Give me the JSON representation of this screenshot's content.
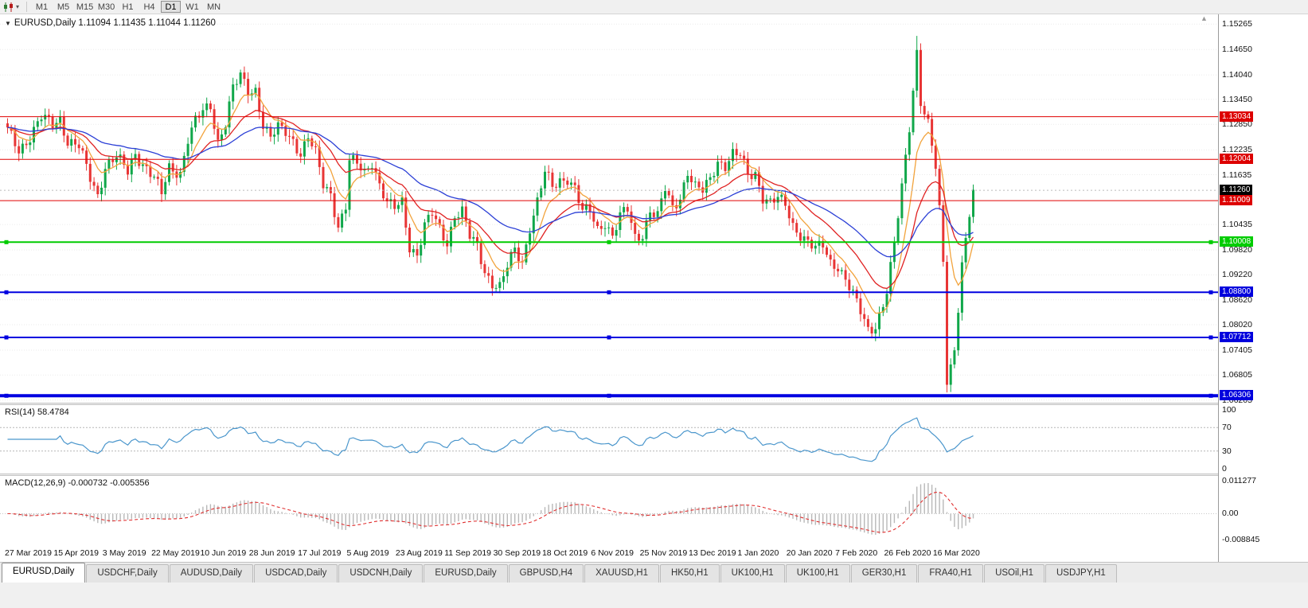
{
  "icons": {
    "dropdown_arrow": "▾",
    "header_arrow": "▼",
    "scroll_arrow": "▲"
  },
  "toolbar": {
    "timeframes": [
      "M1",
      "M5",
      "M15",
      "M30",
      "H1",
      "H4",
      "D1",
      "W1",
      "MN"
    ],
    "active_timeframe": "D1"
  },
  "chart": {
    "symbol": "EURUSD,Daily",
    "ohlc_text": "EURUSD,Daily 1.11094 1.11435 1.11044 1.11260",
    "open": "1.11094",
    "high": "1.11435",
    "low": "1.11044",
    "close": "1.11260"
  },
  "price_axis": {
    "range": {
      "max": 1.155,
      "min": 1.0614
    },
    "plain_labels": [
      "1.15265",
      "1.14650",
      "1.14040",
      "1.13450",
      "1.12850",
      "1.12235",
      "1.11635",
      "1.10435",
      "1.09820",
      "1.09220",
      "1.08620",
      "1.08020",
      "1.07405",
      "1.06805",
      "1.06205"
    ],
    "boxed_labels": [
      {
        "text": "1.13034",
        "bg": "#dd0000",
        "fg": "#ffffff"
      },
      {
        "text": "1.12004",
        "bg": "#dd0000",
        "fg": "#ffffff"
      },
      {
        "text": "1.11260",
        "bg": "#000000",
        "fg": "#ffffff"
      },
      {
        "text": "1.11009",
        "bg": "#dd0000",
        "fg": "#ffffff"
      },
      {
        "text": "1.10008",
        "bg": "#00cc00",
        "fg": "#ffffff"
      },
      {
        "text": "1.08800",
        "bg": "#0000dd",
        "fg": "#ffffff"
      },
      {
        "text": "1.07712",
        "bg": "#0000dd",
        "fg": "#ffffff"
      },
      {
        "text": "1.06306",
        "bg": "#0000dd",
        "fg": "#ffffff"
      }
    ]
  },
  "hlines": [
    {
      "price": 1.13034,
      "color": "#e00000",
      "width": 1,
      "style": "solid",
      "handles": false
    },
    {
      "price": 1.12004,
      "color": "#e00000",
      "width": 1,
      "style": "solid",
      "handles": false
    },
    {
      "price": 1.1126,
      "color": "#bbbbbb",
      "width": 1,
      "style": "dotted",
      "handles": false
    },
    {
      "price": 1.11009,
      "color": "#e00000",
      "width": 1,
      "style": "solid",
      "handles": false
    },
    {
      "price": 1.10008,
      "color": "#00cc00",
      "width": 2,
      "style": "solid",
      "handles": true
    },
    {
      "price": 1.088,
      "color": "#0000e0",
      "width": 2,
      "style": "solid",
      "handles": true
    },
    {
      "price": 1.07712,
      "color": "#0000e0",
      "width": 2,
      "style": "solid",
      "handles": true
    },
    {
      "price": 1.06306,
      "color": "#0000e0",
      "width": 4,
      "style": "solid",
      "handles": true
    }
  ],
  "rsi": {
    "label": "RSI(14) 58.4784",
    "value": 58.4784,
    "period": 14,
    "levels": [
      100,
      70,
      30,
      0
    ],
    "line_color": "#4a96cc"
  },
  "macd": {
    "label": "MACD(12,26,9) -0.000732 -0.005356",
    "fast": 12,
    "slow": 26,
    "signal": 9,
    "values": [
      -0.000732,
      -0.005356
    ],
    "scale_max": 0.011277,
    "scale_min": -0.008845,
    "axis_labels": [
      "0.011277",
      "0.00",
      "-0.008845"
    ],
    "hist_color": "#b8b8b8",
    "signal_color": "#e03030"
  },
  "dates": [
    "27 Mar 2019",
    "15 Apr 2019",
    "3 May 2019",
    "22 May 2019",
    "10 Jun 2019",
    "28 Jun 2019",
    "17 Jul 2019",
    "5 Aug 2019",
    "23 Aug 2019",
    "11 Sep 2019",
    "30 Sep 2019",
    "18 Oct 2019",
    "6 Nov 2019",
    "25 Nov 2019",
    "13 Dec 2019",
    "1 Jan 2020",
    "20 Jan 2020",
    "7 Feb 2020",
    "26 Feb 2020",
    "16 Mar 2020"
  ],
  "tabs": {
    "active_index": 0,
    "items": [
      "EURUSD,Daily",
      "USDCHF,Daily",
      "AUDUSD,Daily",
      "USDCAD,Daily",
      "USDCNH,Daily",
      "EURUSD,Daily",
      "GBPUSD,H4",
      "XAUUSD,H1",
      "HK50,H1",
      "UK100,H1",
      "UK100,H1",
      "GER30,H1",
      "FRA40,H1",
      "USOil,H1",
      "USDJPY,H1"
    ]
  },
  "colors": {
    "up": "#10a74a",
    "down": "#e83535",
    "ma_fast": "#f2a33c",
    "ma_mid": "#e02222",
    "ma_slow": "#2b3fd6",
    "grid": "#ebebeb"
  },
  "chart_data": {
    "type": "candlestick",
    "symbol": "EURUSD",
    "timeframe": "Daily",
    "x_range": [
      "27 Mar 2019",
      "31 Mar 2020"
    ],
    "candle_count": 258,
    "candles_per_date_label": 13,
    "close_anchors": [
      [
        0,
        1.127
      ],
      [
        3,
        1.1225
      ],
      [
        6,
        1.1255
      ],
      [
        9,
        1.13
      ],
      [
        12,
        1.1285
      ],
      [
        14,
        1.13
      ],
      [
        16,
        1.1245
      ],
      [
        19,
        1.123
      ],
      [
        22,
        1.1155
      ],
      [
        24,
        1.1115
      ],
      [
        26,
        1.1185
      ],
      [
        29,
        1.1205
      ],
      [
        32,
        1.117
      ],
      [
        34,
        1.1215
      ],
      [
        37,
        1.118
      ],
      [
        39,
        1.1155
      ],
      [
        41,
        1.1115
      ],
      [
        43,
        1.118
      ],
      [
        46,
        1.117
      ],
      [
        48,
        1.125
      ],
      [
        50,
        1.129
      ],
      [
        52,
        1.1315
      ],
      [
        54,
        1.133
      ],
      [
        56,
        1.1245
      ],
      [
        58,
        1.129
      ],
      [
        60,
        1.137
      ],
      [
        62,
        1.14
      ],
      [
        64,
        1.1365
      ],
      [
        66,
        1.137
      ],
      [
        68,
        1.1285
      ],
      [
        70,
        1.125
      ],
      [
        72,
        1.1275
      ],
      [
        74,
        1.1268
      ],
      [
        76,
        1.1248
      ],
      [
        78,
        1.1215
      ],
      [
        80,
        1.1252
      ],
      [
        82,
        1.1212
      ],
      [
        84,
        1.114
      ],
      [
        86,
        1.112
      ],
      [
        88,
        1.104
      ],
      [
        90,
        1.1085
      ],
      [
        91,
        1.1195
      ],
      [
        93,
        1.1188
      ],
      [
        95,
        1.117
      ],
      [
        97,
        1.1198
      ],
      [
        99,
        1.114
      ],
      [
        101,
        1.1092
      ],
      [
        103,
        1.1082
      ],
      [
        105,
        1.1098
      ],
      [
        107,
        1.0992
      ],
      [
        109,
        1.0972
      ],
      [
        111,
        1.1038
      ],
      [
        113,
        1.1068
      ],
      [
        115,
        1.1032
      ],
      [
        117,
        1.1002
      ],
      [
        119,
        1.1068
      ],
      [
        121,
        1.1074
      ],
      [
        123,
        1.1012
      ],
      [
        125,
        1.099
      ],
      [
        127,
        1.0932
      ],
      [
        129,
        1.0904
      ],
      [
        131,
        1.0892
      ],
      [
        133,
        1.094
      ],
      [
        135,
        1.0982
      ],
      [
        137,
        1.0952
      ],
      [
        139,
        1.104
      ],
      [
        141,
        1.1098
      ],
      [
        143,
        1.1168
      ],
      [
        145,
        1.1132
      ],
      [
        147,
        1.115
      ],
      [
        149,
        1.1158
      ],
      [
        151,
        1.1132
      ],
      [
        153,
        1.1072
      ],
      [
        155,
        1.1076
      ],
      [
        157,
        1.1032
      ],
      [
        159,
        1.1052
      ],
      [
        161,
        1.1016
      ],
      [
        163,
        1.1062
      ],
      [
        165,
        1.1078
      ],
      [
        167,
        1.1012
      ],
      [
        169,
        1.1022
      ],
      [
        171,
        1.1078
      ],
      [
        173,
        1.1062
      ],
      [
        175,
        1.1128
      ],
      [
        177,
        1.1082
      ],
      [
        179,
        1.1112
      ],
      [
        181,
        1.1172
      ],
      [
        183,
        1.1132
      ],
      [
        185,
        1.1122
      ],
      [
        187,
        1.1152
      ],
      [
        189,
        1.1198
      ],
      [
        191,
        1.1188
      ],
      [
        193,
        1.1212
      ],
      [
        195,
        1.1208
      ],
      [
        197,
        1.1162
      ],
      [
        199,
        1.1168
      ],
      [
        201,
        1.1112
      ],
      [
        203,
        1.1096
      ],
      [
        205,
        1.1104
      ],
      [
        207,
        1.109
      ],
      [
        209,
        1.1042
      ],
      [
        211,
        1.1022
      ],
      [
        213,
        1.1002
      ],
      [
        215,
        1.0982
      ],
      [
        217,
        1.0992
      ],
      [
        219,
        1.0952
      ],
      [
        221,
        1.0946
      ],
      [
        223,
        1.0912
      ],
      [
        225,
        1.0872
      ],
      [
        227,
        1.0832
      ],
      [
        229,
        1.079
      ],
      [
        231,
        1.0802
      ],
      [
        233,
        1.0852
      ],
      [
        234,
        1.0882
      ],
      [
        236,
        1.0992
      ],
      [
        238,
        1.1132
      ],
      [
        240,
        1.1282
      ],
      [
        242,
        1.1462
      ],
      [
        243,
        1.1342
      ],
      [
        245,
        1.1282
      ],
      [
        247,
        1.1178
      ],
      [
        248,
        1.1075
      ],
      [
        249,
        1.0952
      ],
      [
        250,
        1.0672
      ],
      [
        252,
        1.0742
      ],
      [
        254,
        1.0952
      ],
      [
        256,
        1.1062
      ],
      [
        257,
        1.1126
      ]
    ],
    "high_overrides": {
      "242": 1.1498
    },
    "low_overrides": {
      "250": 1.064
    },
    "moving_averages": [
      {
        "name": "fast",
        "period": 8,
        "color_key": "ma_fast"
      },
      {
        "name": "mid",
        "period": 20,
        "color_key": "ma_mid"
      },
      {
        "name": "slow",
        "period": 45,
        "color_key": "ma_slow"
      }
    ],
    "last_candle": {
      "open": 1.11094,
      "high": 1.11435,
      "low": 1.11044,
      "close": 1.1126
    },
    "rsi_value": 58.4784,
    "macd_values": [
      -0.000732,
      -0.005356
    ]
  }
}
